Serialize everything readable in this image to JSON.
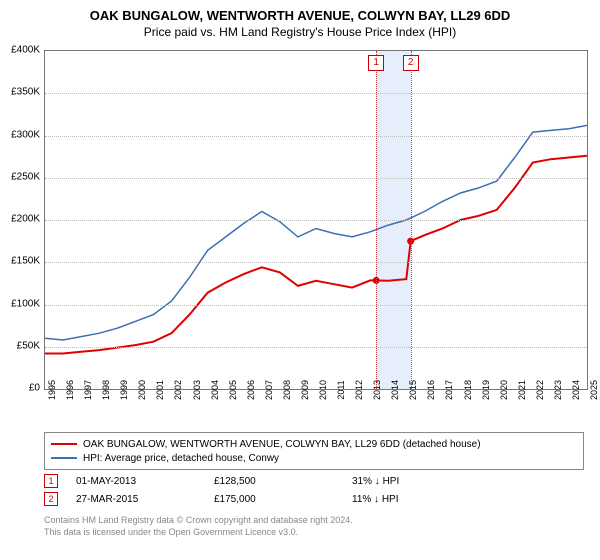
{
  "title": "OAK BUNGALOW, WENTWORTH AVENUE, COLWYN BAY, LL29 6DD",
  "subtitle": "Price paid vs. HM Land Registry's House Price Index (HPI)",
  "chart": {
    "type": "line",
    "background_color": "#ffffff",
    "grid_color": "#bcbcbc",
    "border_color": "#777777",
    "ylim": [
      0,
      400000
    ],
    "ytick_step": 50000,
    "ytick_format_prefix": "£",
    "ytick_format_suffix": "K",
    "xlim": [
      1995,
      2025
    ],
    "xticks": [
      1995,
      1996,
      1997,
      1998,
      1999,
      2000,
      2001,
      2002,
      2003,
      2004,
      2005,
      2006,
      2007,
      2008,
      2009,
      2010,
      2011,
      2012,
      2013,
      2014,
      2015,
      2016,
      2017,
      2018,
      2019,
      2020,
      2021,
      2022,
      2023,
      2024,
      2025
    ],
    "series": [
      {
        "key": "property",
        "label": "OAK BUNGALOW, WENTWORTH AVENUE, COLWYN BAY, LL29 6DD (detached house)",
        "color": "#e00000",
        "line_width": 2,
        "points": [
          [
            1995,
            42000
          ],
          [
            1996,
            42000
          ],
          [
            1997,
            44000
          ],
          [
            1998,
            46000
          ],
          [
            1999,
            49000
          ],
          [
            2000,
            52000
          ],
          [
            2001,
            56000
          ],
          [
            2002,
            66000
          ],
          [
            2003,
            88000
          ],
          [
            2004,
            114000
          ],
          [
            2005,
            126000
          ],
          [
            2006,
            136000
          ],
          [
            2007,
            144000
          ],
          [
            2008,
            138000
          ],
          [
            2009,
            122000
          ],
          [
            2010,
            128000
          ],
          [
            2011,
            124000
          ],
          [
            2012,
            120000
          ],
          [
            2013,
            128500
          ],
          [
            2013.33,
            128500
          ],
          [
            2014,
            128000
          ],
          [
            2015,
            130000
          ],
          [
            2015.24,
            175000
          ],
          [
            2016,
            182000
          ],
          [
            2017,
            190000
          ],
          [
            2018,
            200000
          ],
          [
            2019,
            205000
          ],
          [
            2020,
            212000
          ],
          [
            2021,
            238000
          ],
          [
            2022,
            268000
          ],
          [
            2023,
            272000
          ],
          [
            2024,
            274000
          ],
          [
            2025,
            276000
          ]
        ],
        "sale_dots": [
          [
            2013.33,
            128500
          ],
          [
            2015.24,
            175000
          ]
        ]
      },
      {
        "key": "hpi",
        "label": "HPI: Average price, detached house, Conwy",
        "color": "#3b6fb6",
        "line_width": 1.5,
        "points": [
          [
            1995,
            60000
          ],
          [
            1996,
            58000
          ],
          [
            1997,
            62000
          ],
          [
            1998,
            66000
          ],
          [
            1999,
            72000
          ],
          [
            2000,
            80000
          ],
          [
            2001,
            88000
          ],
          [
            2002,
            104000
          ],
          [
            2003,
            132000
          ],
          [
            2004,
            164000
          ],
          [
            2005,
            180000
          ],
          [
            2006,
            196000
          ],
          [
            2007,
            210000
          ],
          [
            2008,
            198000
          ],
          [
            2009,
            180000
          ],
          [
            2010,
            190000
          ],
          [
            2011,
            184000
          ],
          [
            2012,
            180000
          ],
          [
            2013,
            186000
          ],
          [
            2014,
            194000
          ],
          [
            2015,
            200000
          ],
          [
            2016,
            210000
          ],
          [
            2017,
            222000
          ],
          [
            2018,
            232000
          ],
          [
            2019,
            238000
          ],
          [
            2020,
            246000
          ],
          [
            2021,
            274000
          ],
          [
            2022,
            304000
          ],
          [
            2023,
            306000
          ],
          [
            2024,
            308000
          ],
          [
            2025,
            312000
          ]
        ]
      }
    ],
    "sale_markers": [
      {
        "n": "1",
        "date": "01-MAY-2013",
        "x": 2013.33,
        "price": "£128,500",
        "vs_hpi": "31% ↓ HPI"
      },
      {
        "n": "2",
        "date": "27-MAR-2015",
        "x": 2015.24,
        "price": "£175,000",
        "vs_hpi": "11% ↓ HPI"
      }
    ],
    "marker_band_color": "#e6eefb",
    "marker_line_color": "#d04040",
    "label_fontsize": 10
  },
  "legend": {
    "rows": [
      {
        "color": "#e00000",
        "text": "OAK BUNGALOW, WENTWORTH AVENUE, COLWYN BAY, LL29 6DD (detached house)"
      },
      {
        "color": "#3b6fb6",
        "text": "HPI: Average price, detached house, Conwy"
      }
    ]
  },
  "copyright": {
    "line1": "Contains HM Land Registry data © Crown copyright and database right 2024.",
    "line2": "This data is licensed under the Open Government Licence v3.0."
  }
}
